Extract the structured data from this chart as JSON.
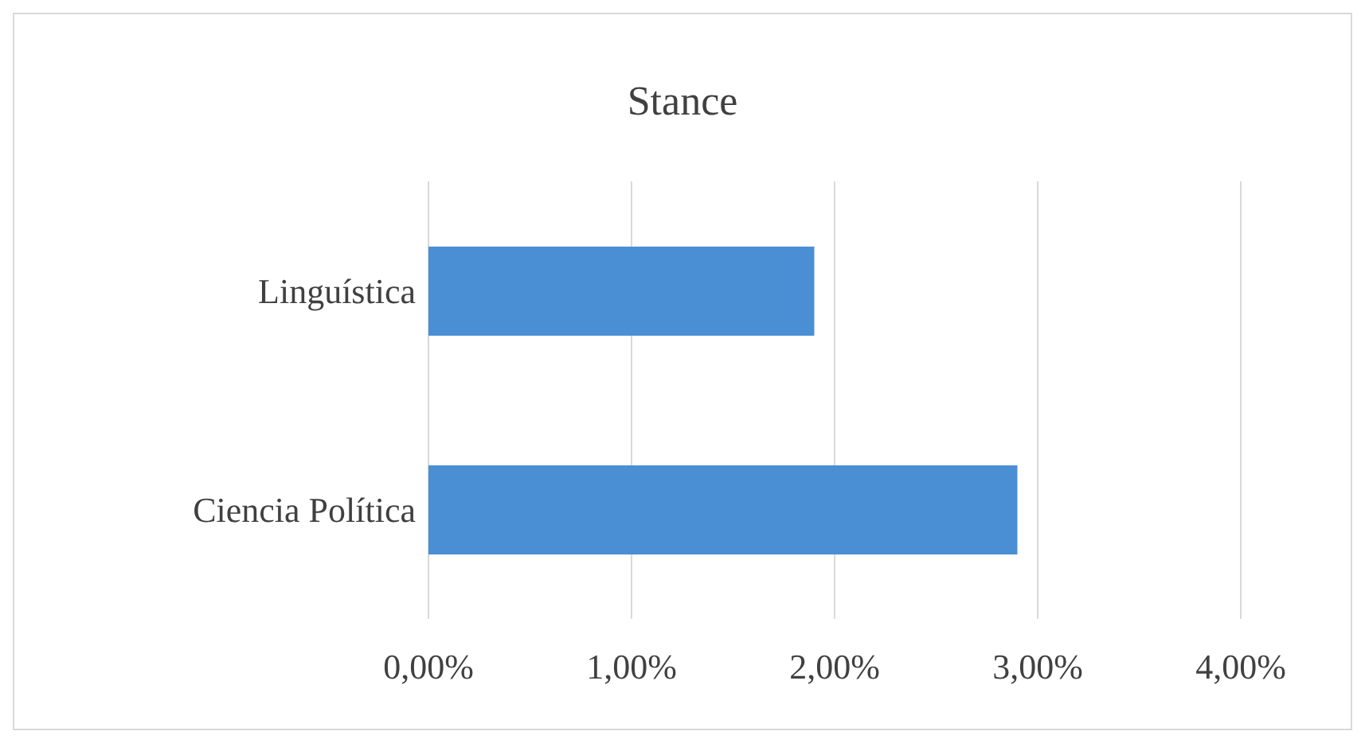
{
  "chart_data": {
    "type": "bar",
    "orientation": "horizontal",
    "title": "Stance",
    "categories": [
      "Linguística",
      "Ciencia Política"
    ],
    "values": [
      1.9,
      2.9
    ],
    "color": "#4a8fd4",
    "xlim": [
      0,
      4
    ],
    "xticks": [
      {
        "value": 0,
        "label": "0,00%"
      },
      {
        "value": 1,
        "label": "1,00%"
      },
      {
        "value": 2,
        "label": "2,00%"
      },
      {
        "value": 3,
        "label": "3,00%"
      },
      {
        "value": 4,
        "label": "4,00%"
      }
    ],
    "grid": "x"
  }
}
